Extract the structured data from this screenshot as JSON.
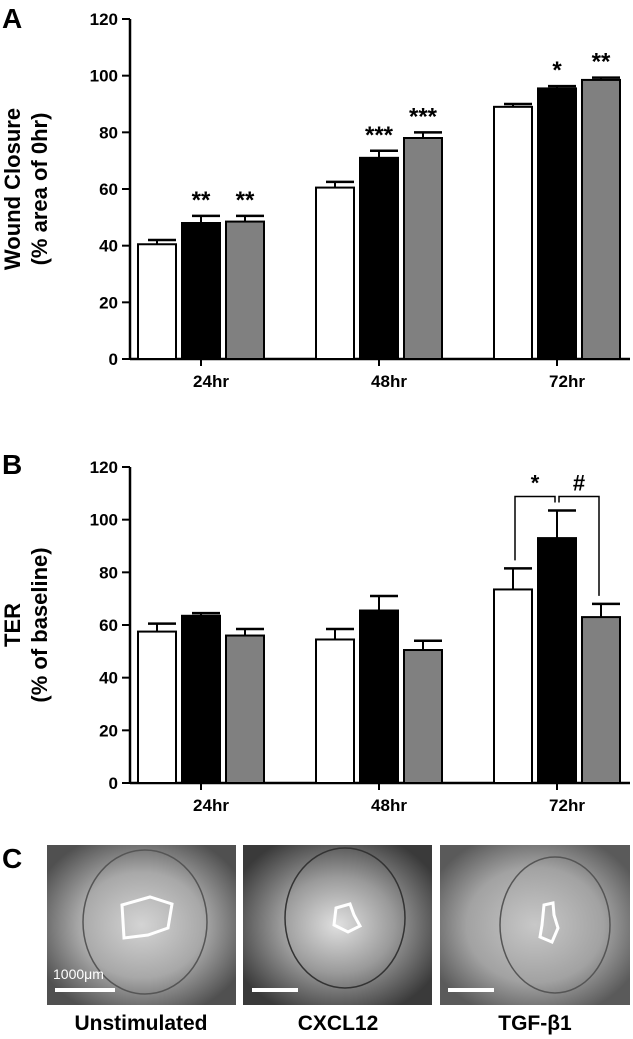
{
  "chart_data": [
    {
      "type": "bar",
      "panel": "A",
      "ylabel": [
        "Wound Closure",
        "(% area of 0hr)"
      ],
      "categories": [
        "24hr",
        "48hr",
        "72hr"
      ],
      "series": [
        {
          "color": "#ffffff",
          "values": [
            40.5,
            60.5,
            89
          ],
          "errors": [
            1.5,
            2,
            1
          ]
        },
        {
          "color": "#000000",
          "values": [
            48,
            71,
            95.5
          ],
          "errors": [
            2.5,
            2.5,
            0.8
          ],
          "significance": [
            "**",
            "***",
            "*"
          ]
        },
        {
          "color": "#808080",
          "values": [
            48.5,
            78,
            98.5
          ],
          "errors": [
            2,
            2,
            0.8
          ],
          "significance": [
            "**",
            "***",
            "**"
          ]
        }
      ],
      "ylim": [
        0,
        120
      ],
      "yticks": [
        0,
        20,
        40,
        60,
        80,
        100,
        120
      ]
    },
    {
      "type": "bar",
      "panel": "B",
      "ylabel": [
        "TER",
        "(% of baseline)"
      ],
      "categories": [
        "24hr",
        "48hr",
        "72hr"
      ],
      "series": [
        {
          "color": "#ffffff",
          "values": [
            57.5,
            54.5,
            73.5
          ],
          "errors": [
            3,
            4,
            8
          ]
        },
        {
          "color": "#000000",
          "values": [
            63.5,
            65.5,
            93
          ],
          "errors": [
            1,
            5.5,
            10.5
          ]
        },
        {
          "color": "#808080",
          "values": [
            56,
            50.5,
            63
          ],
          "errors": [
            2.5,
            3.5,
            5
          ]
        }
      ],
      "brackets": [
        {
          "text": "*",
          "category": 2,
          "pair": [
            0,
            1
          ]
        },
        {
          "text": "#",
          "category": 2,
          "pair": [
            1,
            2
          ]
        }
      ],
      "ylim": [
        0,
        120
      ],
      "yticks": [
        0,
        20,
        40,
        60,
        80,
        100,
        120
      ]
    }
  ],
  "images": {
    "panel": "C",
    "labels": [
      "Unstimulated",
      "CXCL12",
      "TGF-β1"
    ],
    "scale_bar": "1000μm"
  }
}
